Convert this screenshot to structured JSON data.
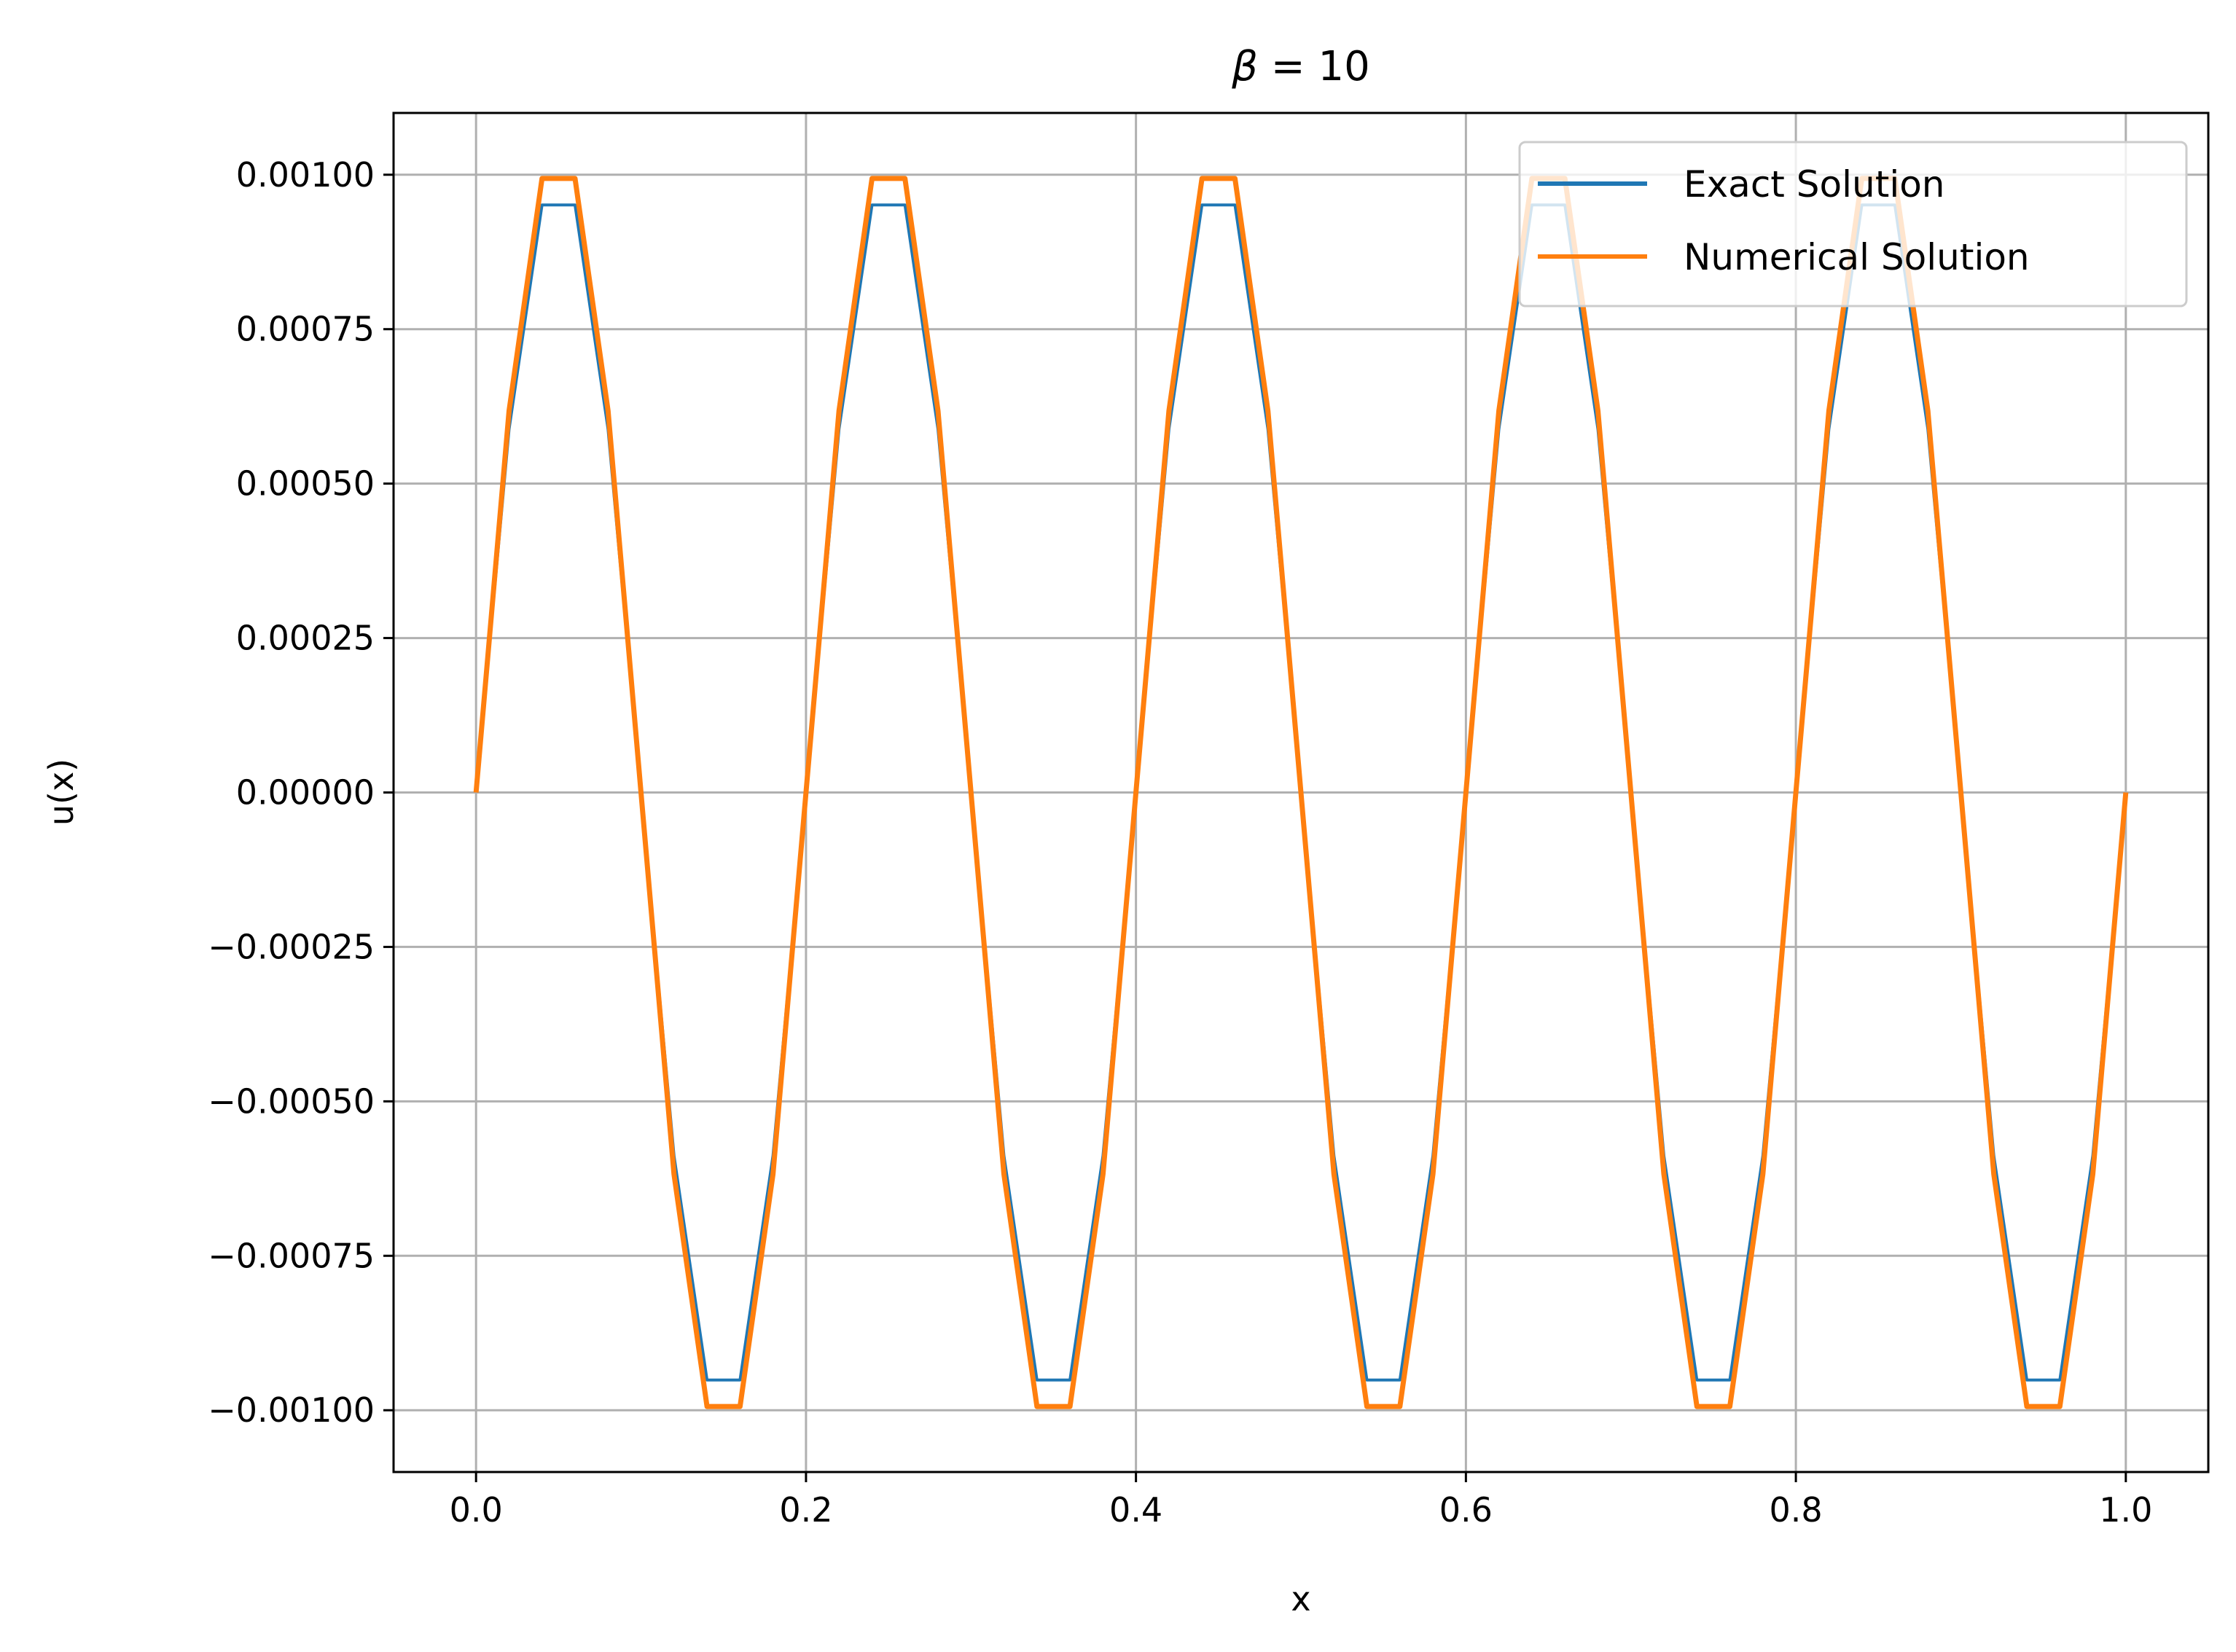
{
  "chart_data": {
    "type": "line",
    "title_symbol": "β",
    "title_rest": " = 10",
    "xlabel": "x",
    "ylabel": "u(x)",
    "xlim": [
      -0.05,
      1.05
    ],
    "ylim": [
      -0.0011,
      0.0011
    ],
    "xticks": [
      0.0,
      0.2,
      0.4,
      0.6,
      0.8,
      1.0
    ],
    "xtick_labels": [
      "0.0",
      "0.2",
      "0.4",
      "0.6",
      "0.8",
      "1.0"
    ],
    "yticks": [
      0.001,
      0.00075,
      0.0005,
      0.00025,
      0.0,
      -0.00025,
      -0.0005,
      -0.00075,
      -0.001
    ],
    "ytick_labels": [
      "0.00100",
      "0.00075",
      "0.00050",
      "0.00025",
      "0.00000",
      "−0.00025",
      "−0.00050",
      "−0.00075",
      "−0.00100"
    ],
    "grid": true,
    "legend_position": "upper right",
    "x": [
      0.0,
      0.02,
      0.04,
      0.06,
      0.08,
      0.1,
      0.12,
      0.14,
      0.16,
      0.18,
      0.2,
      0.22,
      0.24,
      0.26,
      0.28,
      0.3,
      0.32,
      0.34,
      0.36,
      0.38,
      0.4,
      0.42,
      0.44,
      0.46,
      0.48,
      0.5,
      0.52,
      0.54,
      0.56,
      0.58,
      0.6,
      0.62,
      0.64,
      0.66,
      0.68,
      0.7,
      0.72,
      0.74,
      0.76,
      0.78,
      0.8,
      0.82,
      0.84,
      0.86,
      0.88,
      0.9,
      0.92,
      0.94,
      0.96,
      0.98,
      1.0
    ],
    "series": [
      {
        "name": "Exact Solution",
        "color": "#1f77b4",
        "values": [
          0.0,
          0.000588,
          0.000951,
          0.000951,
          0.000588,
          0.0,
          -0.000588,
          -0.000951,
          -0.000951,
          -0.000588,
          0.0,
          0.000588,
          0.000951,
          0.000951,
          0.000588,
          0.0,
          -0.000588,
          -0.000951,
          -0.000951,
          -0.000588,
          0.0,
          0.000588,
          0.000951,
          0.000951,
          0.000588,
          0.0,
          -0.000588,
          -0.000951,
          -0.000951,
          -0.000588,
          0.0,
          0.000588,
          0.000951,
          0.000951,
          0.000588,
          0.0,
          -0.000588,
          -0.000951,
          -0.000951,
          -0.000588,
          0.0,
          0.000588,
          0.000951,
          0.000951,
          0.000588,
          0.0,
          -0.000588,
          -0.000951,
          -0.000951,
          -0.000588,
          0.0
        ]
      },
      {
        "name": "Numerical Solution",
        "color": "#ff7f0e",
        "values": [
          0.0,
          0.000618,
          0.000994,
          0.000994,
          0.000618,
          0.0,
          -0.000618,
          -0.000994,
          -0.000994,
          -0.000618,
          0.0,
          0.000618,
          0.000994,
          0.000994,
          0.000618,
          0.0,
          -0.000618,
          -0.000994,
          -0.000994,
          -0.000618,
          0.0,
          0.000618,
          0.000994,
          0.000994,
          0.000618,
          0.0,
          -0.000618,
          -0.000994,
          -0.000994,
          -0.000618,
          0.0,
          0.000618,
          0.000994,
          0.000994,
          0.000618,
          0.0,
          -0.000618,
          -0.000994,
          -0.000994,
          -0.000618,
          0.0,
          0.000618,
          0.000994,
          0.000994,
          0.000618,
          0.0,
          -0.000618,
          -0.000994,
          -0.000994,
          -0.000618,
          0.0
        ]
      }
    ]
  }
}
